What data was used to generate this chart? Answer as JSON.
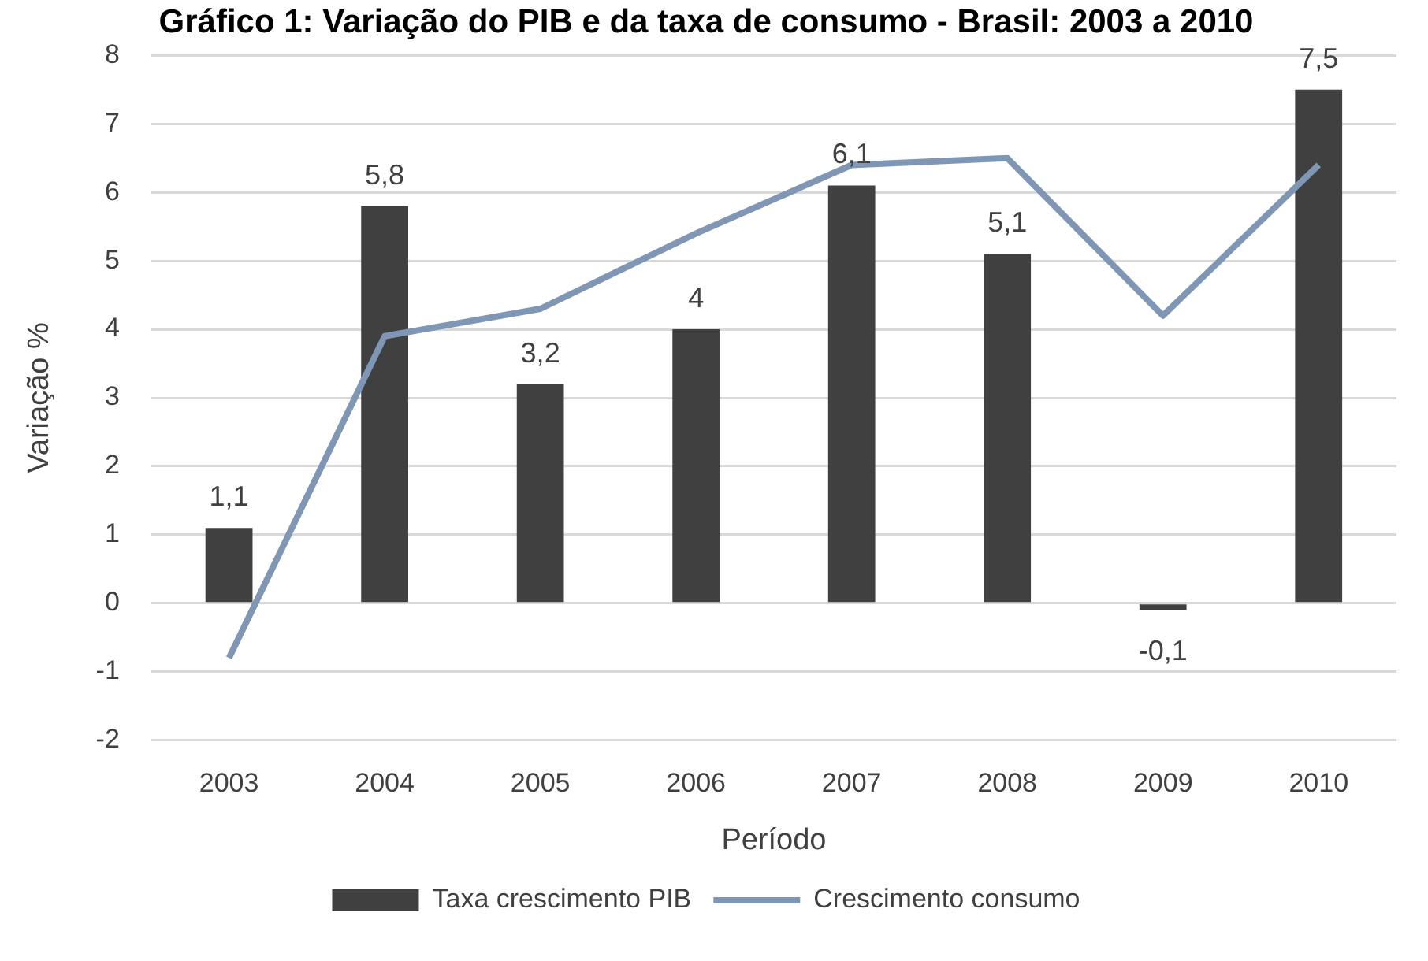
{
  "chart_data": {
    "type": "bar",
    "title": "Gráfico 1: Variação do PIB e da taxa de consumo - Brasil: 2003 a 2010",
    "xlabel": "Período",
    "ylabel": "Variação %",
    "categories": [
      "2003",
      "2004",
      "2005",
      "2006",
      "2007",
      "2008",
      "2009",
      "2010"
    ],
    "series": [
      {
        "name": "Taxa crescimento PIB",
        "color": "#404040",
        "values": [
          1.1,
          5.8,
          3.2,
          4,
          6.1,
          5.1,
          -0.1,
          7.5
        ],
        "value_labels": [
          "1,1",
          "5,8",
          "3,2",
          "4",
          "6,1",
          "5,1",
          "-0,1",
          "7,5"
        ]
      },
      {
        "name": "Crescimento consumo",
        "type": "line",
        "color": "#7f96b4",
        "values": [
          -0.8,
          3.9,
          4.3,
          5.4,
          6.4,
          6.5,
          4.2,
          6.4
        ]
      }
    ],
    "ylim": [
      -2,
      8
    ],
    "yticks": [
      -2,
      -1,
      0,
      1,
      2,
      3,
      4,
      5,
      6,
      7,
      8
    ],
    "grid": "y",
    "legend": "bottom",
    "marker": "none"
  }
}
